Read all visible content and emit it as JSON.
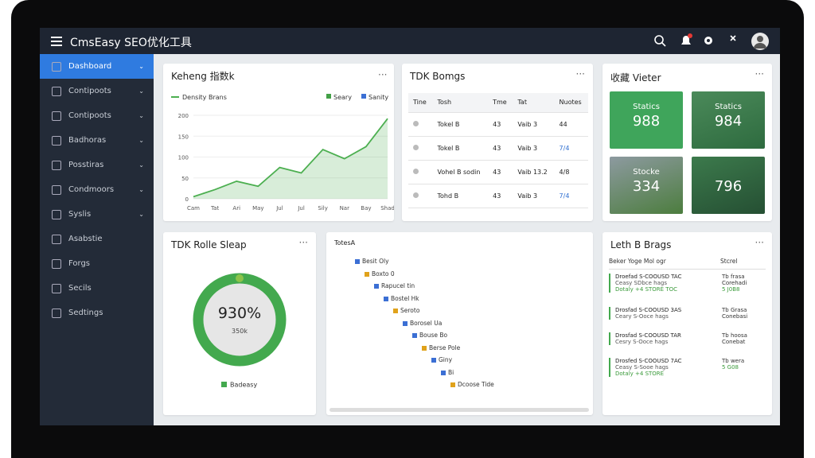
{
  "header": {
    "title": "CmsEasy SEO优化工具"
  },
  "sidebar": [
    "Dashboard",
    "Contipoots",
    "Contipoots",
    "Badhoras",
    "Posstiras",
    "Condmoors",
    "Syslis",
    "Asabstie",
    "Forgs",
    "Secils",
    "Sedtings"
  ],
  "chart_data": {
    "type": "line",
    "title": "Keheng 指数k",
    "categories": [
      "Cam",
      "Tat",
      "Ari",
      "May",
      "Jul",
      "Jul",
      "Sily",
      "Nar",
      "Bay",
      "Shad"
    ],
    "series": [
      {
        "name": "Density Brans",
        "color": "#4caf50",
        "values": [
          5,
          22,
          42,
          30,
          75,
          62,
          118,
          96,
          125,
          192
        ]
      }
    ],
    "extra_legend": [
      {
        "name": "Seary",
        "color": "#43a047"
      },
      {
        "name": "Sanity",
        "color": "#3b6fd4"
      }
    ],
    "ylim": [
      0,
      200
    ],
    "yticks": [
      0,
      50,
      100,
      150,
      200
    ],
    "grid": true
  },
  "tdk_table": {
    "title": "TDK Bomgs",
    "headers": [
      "Tine",
      "Tosh",
      "Tme",
      "Tat",
      "Nuotes"
    ],
    "rows": [
      [
        "Tokel B",
        "43",
        "Vaib 3",
        "44"
      ],
      [
        "Tokel B",
        "43",
        "Vaib 3",
        "7/4"
      ],
      [
        "Vohel B sodin",
        "43",
        "Vaib 13.2",
        "4/8"
      ],
      [
        "Tohd B",
        "43",
        "Vaib 3",
        "7/4"
      ]
    ]
  },
  "tiles": {
    "title": "收藏 Vieter",
    "items": [
      {
        "label": "Statics",
        "value": "988"
      },
      {
        "label": "Statics",
        "value": "984"
      },
      {
        "label": "Stocke",
        "value": "334"
      },
      {
        "label": "",
        "value": "796"
      }
    ]
  },
  "donut": {
    "title": "TDK Rolle Sleap",
    "value": "930%",
    "sub": "350k",
    "legend": "Badeasy"
  },
  "tree": {
    "title": "TotesA",
    "nodes": [
      {
        "label": "Besit Oly",
        "level": 0
      },
      {
        "label": "Boxto 0",
        "level": 1
      },
      {
        "label": "Rapucel tin",
        "level": 2
      },
      {
        "label": "Bostel Hk",
        "level": 3
      },
      {
        "label": "Seroto",
        "level": 4
      },
      {
        "label": "Borosel Ua",
        "level": 5
      },
      {
        "label": "Bouse Bo",
        "level": 6
      },
      {
        "label": "Berse Pole",
        "level": 7
      },
      {
        "label": "Giny",
        "level": 8
      },
      {
        "label": "Bi",
        "level": 9
      },
      {
        "label": "Dcoose Tide",
        "level": 10
      }
    ]
  },
  "log": {
    "title": "Leth B Brags",
    "headers": [
      "Beker Yoge Mol ogr",
      "Stcrel"
    ],
    "items": [
      {
        "title": "Droefad S-COOUSD TAC",
        "lines": [
          "Ceasy SDbce hags",
          "Dotaly +4 STORE TOC"
        ],
        "side": [
          "Tb frasa",
          "Corehadi",
          "5 J0B8"
        ]
      },
      {
        "title": "Drosfad S-COOUSD 3AS",
        "lines": [
          "Ceary S-Ooce hags"
        ],
        "side": [
          "Tb Grasa",
          "Conebasi"
        ]
      },
      {
        "title": "Drosfad S-COOUSD TAR",
        "lines": [
          "Cesry S-Ooce hags"
        ],
        "side": [
          "Tb hoosa",
          "Conebat"
        ]
      },
      {
        "title": "Drosfed S-COOUSD 7AC",
        "lines": [
          "Ceasy S-Sooe hags",
          "Dotaly +4 STORE"
        ],
        "side": [
          "Tb wera",
          "5 G08"
        ]
      }
    ]
  }
}
